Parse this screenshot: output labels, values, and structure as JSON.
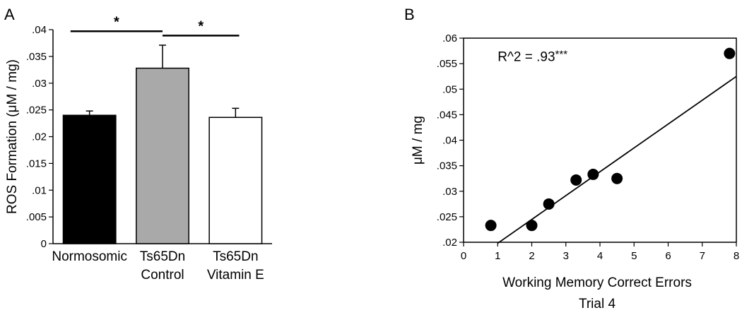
{
  "chart_data": [
    {
      "type": "bar",
      "panel_label": "A",
      "categories": [
        {
          "lines": [
            "Normosomic"
          ]
        },
        {
          "lines": [
            "Ts65Dn",
            "Control"
          ]
        },
        {
          "lines": [
            "Ts65Dn",
            "Vitamin E"
          ]
        }
      ],
      "values": [
        0.024,
        0.0328,
        0.0236
      ],
      "errors": [
        0.0008,
        0.0043,
        0.0017
      ],
      "colors": [
        "#000000",
        "#a9a9a9",
        "#ffffff"
      ],
      "ylabel": "ROS Formation (μM / mg)",
      "ylim": [
        0,
        0.04
      ],
      "yticks": [
        {
          "v": 0,
          "label": "0"
        },
        {
          "v": 0.005,
          "label": ".005"
        },
        {
          "v": 0.01,
          "label": ".01"
        },
        {
          "v": 0.015,
          "label": ".015"
        },
        {
          "v": 0.02,
          "label": ".02"
        },
        {
          "v": 0.025,
          "label": ".025"
        },
        {
          "v": 0.03,
          "label": ".03"
        },
        {
          "v": 0.035,
          "label": ".035"
        },
        {
          "v": 0.04,
          "label": ".04"
        }
      ],
      "significance": [
        {
          "from": 0,
          "to": 1,
          "y": 0.0397,
          "label": "*"
        },
        {
          "from": 1,
          "to": 2,
          "y": 0.0389,
          "label": "*"
        }
      ],
      "grid": false
    },
    {
      "type": "scatter",
      "panel_label": "B",
      "x": [
        0.8,
        2.0,
        2.5,
        3.3,
        3.8,
        4.5,
        7.8
      ],
      "y": [
        0.0233,
        0.0233,
        0.0275,
        0.0322,
        0.0333,
        0.0325,
        0.057
      ],
      "fit_line": {
        "x": [
          1.0,
          8.0
        ],
        "y": [
          0.0198,
          0.0525
        ]
      },
      "annotation": {
        "text": "R^2 = .93",
        "stars": "***",
        "x": 1.0,
        "y": 0.0565
      },
      "xlabel_lines": [
        "Working Memory Correct Errors",
        "Trial 4"
      ],
      "ylabel": "μM / mg",
      "xlim": [
        0,
        8
      ],
      "ylim": [
        0.02,
        0.06
      ],
      "xticks": [
        {
          "v": 0,
          "label": "0"
        },
        {
          "v": 1,
          "label": "1"
        },
        {
          "v": 2,
          "label": "2"
        },
        {
          "v": 3,
          "label": "3"
        },
        {
          "v": 4,
          "label": "4"
        },
        {
          "v": 5,
          "label": "5"
        },
        {
          "v": 6,
          "label": "6"
        },
        {
          "v": 7,
          "label": "7"
        },
        {
          "v": 8,
          "label": "8"
        }
      ],
      "yticks": [
        {
          "v": 0.02,
          "label": ".02"
        },
        {
          "v": 0.025,
          "label": ".025"
        },
        {
          "v": 0.03,
          "label": ".03"
        },
        {
          "v": 0.035,
          "label": ".035"
        },
        {
          "v": 0.04,
          "label": ".04"
        },
        {
          "v": 0.045,
          "label": ".045"
        },
        {
          "v": 0.05,
          "label": ".05"
        },
        {
          "v": 0.055,
          "label": ".055"
        },
        {
          "v": 0.06,
          "label": ".06"
        }
      ],
      "grid": false
    }
  ]
}
